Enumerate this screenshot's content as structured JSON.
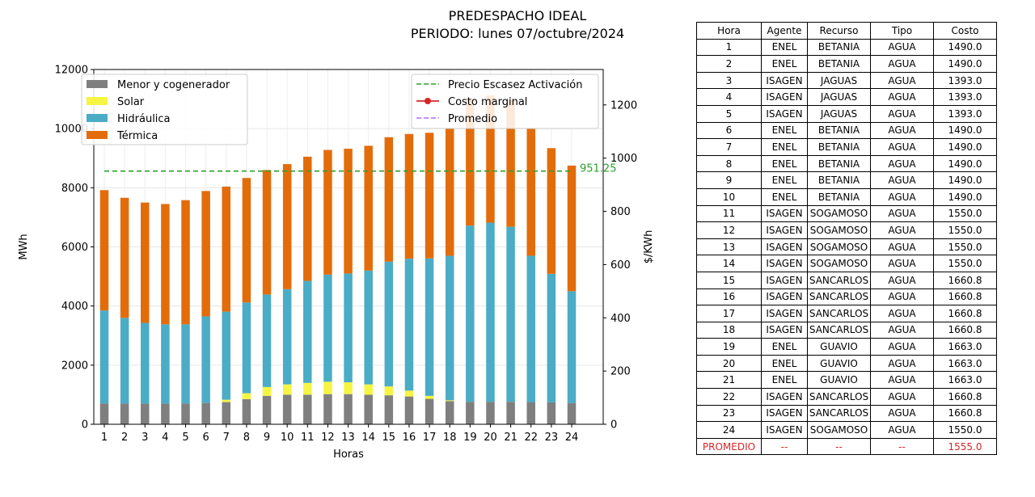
{
  "title": {
    "line1": "PREDESPACHO IDEAL",
    "line2": "PERIODO: lunes 07/octubre/2024"
  },
  "chart_data": {
    "type": "bar",
    "stacked": true,
    "xlabel": "Horas",
    "ylabel": "MWh",
    "y2label": "$/KWh",
    "ylim": [
      0,
      12000
    ],
    "y2lim": [
      0,
      1333
    ],
    "yticks": [
      0,
      2000,
      4000,
      6000,
      8000,
      10000,
      12000
    ],
    "y2ticks": [
      0,
      200,
      400,
      600,
      800,
      1000,
      1200
    ],
    "grid": true,
    "legend_left_placement": "upper-left",
    "legend_right_placement": "upper-right",
    "categories": [
      "1",
      "2",
      "3",
      "4",
      "5",
      "6",
      "7",
      "8",
      "9",
      "10",
      "11",
      "12",
      "13",
      "14",
      "15",
      "16",
      "17",
      "18",
      "19",
      "20",
      "21",
      "22",
      "23",
      "24"
    ],
    "series": [
      {
        "name": "Menor y cogenerador",
        "color": "#7f7f7f",
        "values": [
          700,
          700,
          700,
          700,
          700,
          720,
          750,
          850,
          960,
          1000,
          1000,
          1020,
          1020,
          1000,
          980,
          940,
          860,
          780,
          760,
          760,
          760,
          750,
          740,
          720
        ]
      },
      {
        "name": "Solar",
        "color": "#f5f542",
        "values": [
          0,
          0,
          0,
          0,
          0,
          0,
          80,
          200,
          300,
          350,
          400,
          420,
          400,
          350,
          300,
          200,
          100,
          30,
          0,
          0,
          0,
          0,
          0,
          0
        ]
      },
      {
        "name": "Hidráulica",
        "color": "#4bacc6",
        "values": [
          3150,
          2900,
          2730,
          2680,
          2680,
          2930,
          2980,
          3070,
          3130,
          3220,
          3450,
          3620,
          3680,
          3850,
          4220,
          4460,
          4650,
          4890,
          5960,
          6060,
          5920,
          4950,
          4350,
          3780
        ]
      },
      {
        "name": "Térmica",
        "color": "#e36c0a",
        "values": [
          4070,
          4060,
          4070,
          4070,
          4200,
          4240,
          4230,
          4210,
          4210,
          4230,
          4200,
          4220,
          4220,
          4220,
          4210,
          4220,
          4250,
          4300,
          4300,
          4300,
          4300,
          4300,
          4250,
          4250
        ]
      }
    ],
    "lines": [
      {
        "name": "Precio Escasez Activación",
        "color": "#2ca02c",
        "style": "dashed",
        "constant": 951.25,
        "label": "951.25"
      },
      {
        "name": "Costo marginal",
        "color": "#d62728",
        "style": "solid-marker",
        "values": []
      },
      {
        "name": "Promedio",
        "color": "#b36bff",
        "style": "dashed",
        "values": []
      }
    ]
  },
  "table": {
    "headers": [
      "Hora",
      "Agente",
      "Recurso",
      "Tipo",
      "Costo"
    ],
    "rows": [
      [
        "1",
        "ENEL",
        "BETANIA",
        "AGUA",
        "1490.0"
      ],
      [
        "2",
        "ENEL",
        "BETANIA",
        "AGUA",
        "1490.0"
      ],
      [
        "3",
        "ISAGEN",
        "JAGUAS",
        "AGUA",
        "1393.0"
      ],
      [
        "4",
        "ISAGEN",
        "JAGUAS",
        "AGUA",
        "1393.0"
      ],
      [
        "5",
        "ISAGEN",
        "JAGUAS",
        "AGUA",
        "1393.0"
      ],
      [
        "6",
        "ENEL",
        "BETANIA",
        "AGUA",
        "1490.0"
      ],
      [
        "7",
        "ENEL",
        "BETANIA",
        "AGUA",
        "1490.0"
      ],
      [
        "8",
        "ENEL",
        "BETANIA",
        "AGUA",
        "1490.0"
      ],
      [
        "9",
        "ENEL",
        "BETANIA",
        "AGUA",
        "1490.0"
      ],
      [
        "10",
        "ENEL",
        "BETANIA",
        "AGUA",
        "1490.0"
      ],
      [
        "11",
        "ISAGEN",
        "SOGAMOSO",
        "AGUA",
        "1550.0"
      ],
      [
        "12",
        "ISAGEN",
        "SOGAMOSO",
        "AGUA",
        "1550.0"
      ],
      [
        "13",
        "ISAGEN",
        "SOGAMOSO",
        "AGUA",
        "1550.0"
      ],
      [
        "14",
        "ISAGEN",
        "SOGAMOSO",
        "AGUA",
        "1550.0"
      ],
      [
        "15",
        "ISAGEN",
        "SANCARLOS",
        "AGUA",
        "1660.8"
      ],
      [
        "16",
        "ISAGEN",
        "SANCARLOS",
        "AGUA",
        "1660.8"
      ],
      [
        "17",
        "ISAGEN",
        "SANCARLOS",
        "AGUA",
        "1660.8"
      ],
      [
        "18",
        "ISAGEN",
        "SANCARLOS",
        "AGUA",
        "1660.8"
      ],
      [
        "19",
        "ENEL",
        "GUAVIO",
        "AGUA",
        "1663.0"
      ],
      [
        "20",
        "ENEL",
        "GUAVIO",
        "AGUA",
        "1663.0"
      ],
      [
        "21",
        "ENEL",
        "GUAVIO",
        "AGUA",
        "1663.0"
      ],
      [
        "22",
        "ISAGEN",
        "SANCARLOS",
        "AGUA",
        "1660.8"
      ],
      [
        "23",
        "ISAGEN",
        "SANCARLOS",
        "AGUA",
        "1660.8"
      ],
      [
        "24",
        "ISAGEN",
        "SOGAMOSO",
        "AGUA",
        "1550.0"
      ]
    ],
    "average_row": [
      "PROMEDIO",
      "--",
      "--",
      "--",
      "1555.0"
    ]
  }
}
